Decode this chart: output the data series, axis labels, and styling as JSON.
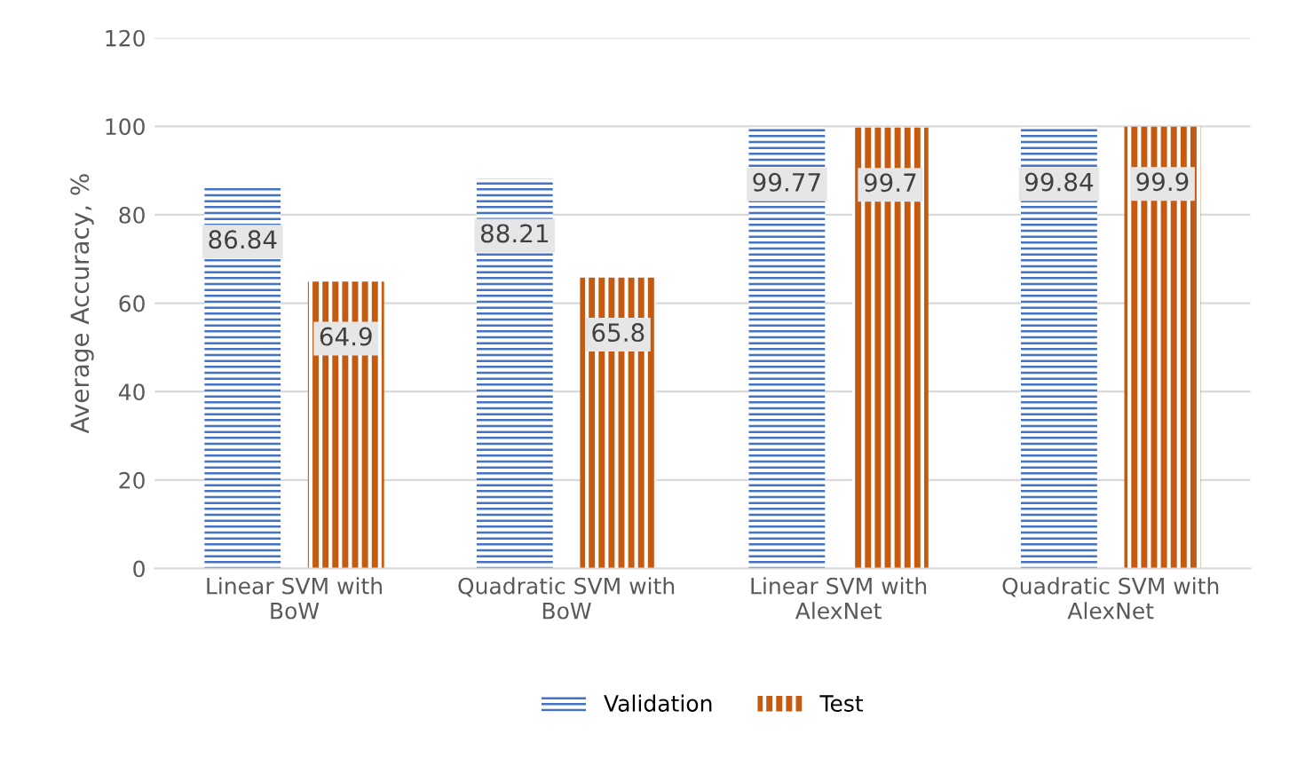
{
  "chart_data": {
    "type": "bar",
    "ylabel": "Average Accuracy, %",
    "categories": [
      "Linear SVM with\nBoW",
      "Quadratic SVM with\nBoW",
      "Linear SVM with\nAlexNet",
      "Quadratic SVM with\nAlexNet"
    ],
    "series": [
      {
        "name": "Validation",
        "color": "#4472c4",
        "values": [
          86.84,
          88.21,
          99.77,
          99.84
        ]
      },
      {
        "name": "Test",
        "color": "#c55a11",
        "values": [
          64.9,
          65.8,
          99.7,
          99.9
        ]
      }
    ],
    "ylim": [
      0,
      120
    ],
    "yticks": [
      0,
      20,
      40,
      60,
      80,
      100,
      120
    ],
    "grid": "y",
    "legend": "bottom",
    "data_labels": true
  }
}
